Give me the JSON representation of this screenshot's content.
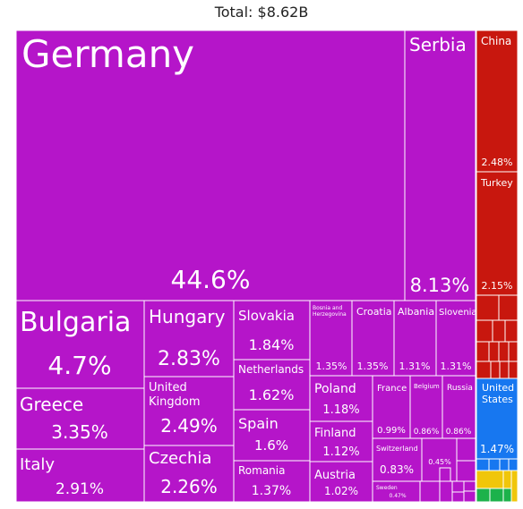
{
  "title": "Total: $8.62B",
  "colors": {
    "europe": "#b515c9",
    "asia": "#c8170e",
    "americas": "#1777f0",
    "africa": "#f0c60a",
    "oceania": "#1cb24b"
  },
  "chart_data": {
    "type": "treemap",
    "title": "Total: $8.62B",
    "value_unit": "percent of total",
    "items": [
      {
        "label": "Germany",
        "value": 44.6,
        "region": "europe"
      },
      {
        "label": "Serbia",
        "value": 8.13,
        "region": "europe"
      },
      {
        "label": "Bulgaria",
        "value": 4.7,
        "region": "europe"
      },
      {
        "label": "Greece",
        "value": 3.35,
        "region": "europe"
      },
      {
        "label": "Italy",
        "value": 2.91,
        "region": "europe"
      },
      {
        "label": "Hungary",
        "value": 2.83,
        "region": "europe"
      },
      {
        "label": "United Kingdom",
        "value": 2.49,
        "region": "europe"
      },
      {
        "label": "Czechia",
        "value": 2.26,
        "region": "europe"
      },
      {
        "label": "Slovakia",
        "value": 1.84,
        "region": "europe"
      },
      {
        "label": "Netherlands",
        "value": 1.62,
        "region": "europe"
      },
      {
        "label": "Spain",
        "value": 1.6,
        "region": "europe"
      },
      {
        "label": "Romania",
        "value": 1.37,
        "region": "europe"
      },
      {
        "label": "Bosnia and Herzegovina",
        "value": 1.35,
        "region": "europe"
      },
      {
        "label": "Croatia",
        "value": 1.35,
        "region": "europe"
      },
      {
        "label": "Albania",
        "value": 1.31,
        "region": "europe"
      },
      {
        "label": "Slovenia",
        "value": 1.31,
        "region": "europe"
      },
      {
        "label": "Poland",
        "value": 1.18,
        "region": "europe"
      },
      {
        "label": "Finland",
        "value": 1.12,
        "region": "europe"
      },
      {
        "label": "Austria",
        "value": 1.02,
        "region": "europe"
      },
      {
        "label": "France",
        "value": 0.99,
        "region": "europe"
      },
      {
        "label": "Belgium",
        "value": 0.86,
        "region": "europe"
      },
      {
        "label": "Russia",
        "value": 0.86,
        "region": "europe"
      },
      {
        "label": "Switzerland",
        "value": 0.83,
        "region": "europe"
      },
      {
        "label": "",
        "value": 0.45,
        "region": "europe"
      },
      {
        "label": "Sweden",
        "value": 0.47,
        "region": "europe"
      },
      {
        "label": "China",
        "value": 2.48,
        "region": "asia"
      },
      {
        "label": "Turkey",
        "value": 2.15,
        "region": "asia"
      },
      {
        "label": "United States",
        "value": 1.47,
        "region": "americas"
      }
    ]
  }
}
